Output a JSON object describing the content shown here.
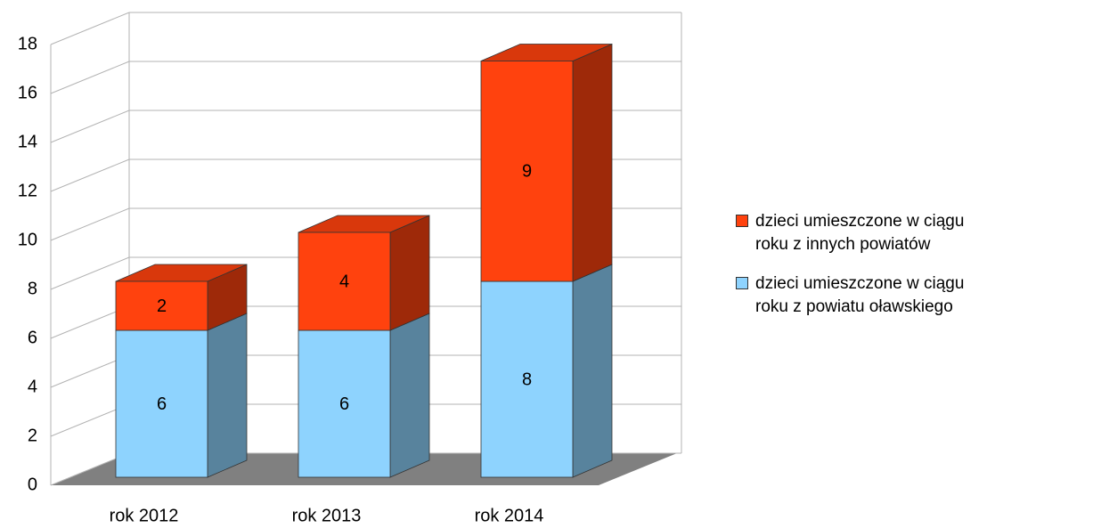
{
  "chart_data": {
    "type": "bar3d_stacked",
    "categories": [
      "rok 2012",
      "rok 2013",
      "rok 2014"
    ],
    "series": [
      {
        "name": "dzieci umieszczone w ciągu roku z powiatu oławskiego",
        "color": "#8ed3fe",
        "values": [
          6,
          6,
          8
        ]
      },
      {
        "name": "dzieci umieszczone w ciągu roku z innych powiatów",
        "color": "#ff420e",
        "values": [
          2,
          4,
          9
        ]
      }
    ],
    "ylim": [
      0,
      18
    ],
    "yticks": [
      0,
      2,
      4,
      6,
      8,
      10,
      12,
      14,
      16,
      18
    ],
    "grid": true,
    "legend": "right"
  }
}
